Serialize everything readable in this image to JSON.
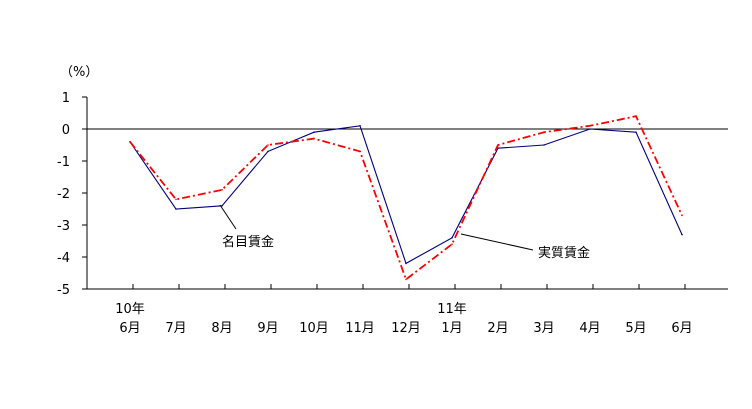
{
  "chart_data": {
    "type": "line",
    "title": "",
    "ylabel": "（%）",
    "ylim": [
      -5,
      1
    ],
    "yticks": [
      1,
      0,
      -1,
      -2,
      -3,
      -4,
      -5
    ],
    "categories": [
      {
        "month": "6月",
        "year": "10年"
      },
      {
        "month": "7月",
        "year": ""
      },
      {
        "month": "8月",
        "year": ""
      },
      {
        "month": "9月",
        "year": ""
      },
      {
        "month": "10月",
        "year": ""
      },
      {
        "month": "11月",
        "year": ""
      },
      {
        "month": "12月",
        "year": ""
      },
      {
        "month": "1月",
        "year": "11年"
      },
      {
        "month": "2月",
        "year": ""
      },
      {
        "month": "3月",
        "year": ""
      },
      {
        "month": "4月",
        "year": ""
      },
      {
        "month": "5月",
        "year": ""
      },
      {
        "month": "6月",
        "year": ""
      }
    ],
    "series": [
      {
        "name": "名目賃金",
        "color": "#000080",
        "style": "solid",
        "values": [
          -0.4,
          -2.5,
          -2.4,
          -0.7,
          -0.1,
          0.1,
          -4.2,
          -3.4,
          -0.6,
          -0.5,
          0.0,
          -0.1,
          -3.3
        ]
      },
      {
        "name": "実質賃金",
        "color": "#ff0000",
        "style": "dashdot",
        "values": [
          -0.4,
          -2.2,
          -1.9,
          -0.5,
          -0.3,
          -0.7,
          -4.7,
          -3.6,
          -0.5,
          -0.1,
          0.1,
          0.4,
          -2.7
        ]
      }
    ],
    "zero_line": true,
    "grid": false,
    "legend": "inline-callouts"
  }
}
